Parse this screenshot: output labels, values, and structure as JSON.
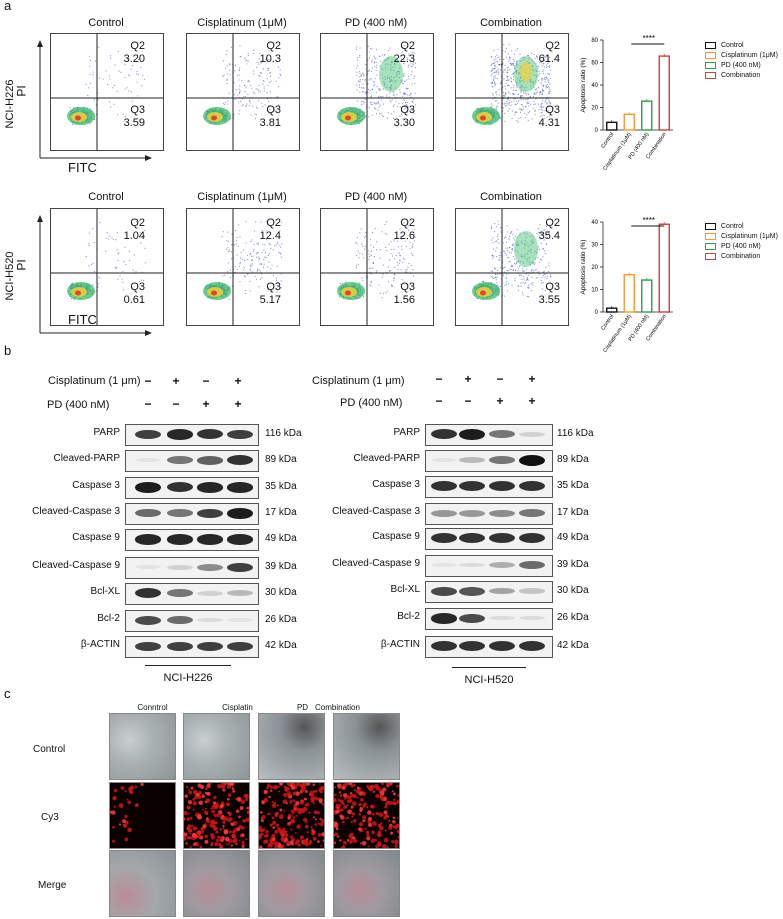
{
  "panel_a": {
    "label": "a",
    "axis_x": "FITC",
    "axis_y": "PI",
    "headers": [
      "Control",
      "Cisplatinum (1μM)",
      "PD (400 nM)",
      "Combination"
    ],
    "rows": [
      {
        "cell": "NCI-H226",
        "plots": [
          {
            "q2_label": "Q2",
            "q2": "3.20",
            "q3_label": "Q3",
            "q3": "3.59"
          },
          {
            "q2_label": "Q2",
            "q2": "10.3",
            "q3_label": "Q3",
            "q3": "3.81"
          },
          {
            "q2_label": "Q2",
            "q2": "22.3",
            "q3_label": "Q3",
            "q3": "3.30"
          },
          {
            "q2_label": "Q2",
            "q2": "61.4",
            "q3_label": "Q3",
            "q3": "4.31"
          }
        ]
      },
      {
        "cell": "NCI-H520",
        "plots": [
          {
            "q2_label": "Q2",
            "q2": "1.04",
            "q3_label": "Q3",
            "q3": "0.61"
          },
          {
            "q2_label": "Q2",
            "q2": "12.4",
            "q3_label": "Q3",
            "q3": "5.17"
          },
          {
            "q2_label": "Q2",
            "q2": "12.6",
            "q3_label": "Q3",
            "q3": "1.56"
          },
          {
            "q2_label": "Q2",
            "q2": "35.4",
            "q3_label": "Q3",
            "q3": "3.55"
          }
        ]
      }
    ],
    "significance": "****",
    "legend": [
      "Control",
      "Cisplatinum (1μM)",
      "PD (400 nM)",
      "Combination"
    ],
    "colors": [
      "#111111",
      "#f39a2c",
      "#2e9e4a",
      "#c8413a"
    ]
  },
  "chart_data": [
    {
      "type": "bar",
      "categories": [
        "Control",
        "Cisplatinum (1μM)",
        "PD (400 nM)",
        "Combination"
      ],
      "values": [
        6.8,
        13.9,
        25.6,
        65.7
      ],
      "ylabel": "Apoptosis ratio (%)",
      "ylim": [
        0,
        80
      ],
      "yticks": [
        "0",
        "20",
        "40",
        "60",
        "80"
      ],
      "legend_position": "right"
    },
    {
      "type": "bar",
      "categories": [
        "Control",
        "Cisplatinum (1μM)",
        "PD (400 nM)",
        "Combination"
      ],
      "values": [
        1.7,
        16.6,
        14.2,
        39.0
      ],
      "ylabel": "Apoptosis ratio (%)",
      "ylim": [
        0,
        40
      ],
      "yticks": [
        "0",
        "10",
        "20",
        "30",
        "40"
      ],
      "legend_position": "right"
    }
  ],
  "panel_b": {
    "label": "b",
    "treatment_cis": "Cisplatinum (1 μm)",
    "treatment_pd": "PD (400 nM)",
    "cis_signs": [
      "−",
      "+",
      "−",
      "+"
    ],
    "pd_signs": [
      "−",
      "−",
      "+",
      "+"
    ],
    "proteins": [
      "PARP",
      "Cleaved-PARP",
      "Caspase 3",
      "Cleaved-Caspase 3",
      "Caspase 9",
      "Cleaved-Caspase 9",
      "Bcl-XL",
      "Bcl-2",
      "β-ACTIN"
    ],
    "sizes": [
      "116 kDa",
      "89 kDa",
      "35 kDa",
      "17 kDa",
      "49 kDa",
      "39 kDa",
      "30 kDa",
      "26 kDa",
      "42 kDa"
    ],
    "left_cell": "NCI-H226",
    "right_cell": "NCI-H520",
    "left_intensity": [
      [
        0.8,
        0.9,
        0.85,
        0.8
      ],
      [
        0.05,
        0.55,
        0.65,
        0.85
      ],
      [
        0.95,
        0.85,
        0.9,
        0.9
      ],
      [
        0.6,
        0.55,
        0.8,
        0.95
      ],
      [
        0.9,
        0.9,
        0.9,
        0.9
      ],
      [
        0.05,
        0.15,
        0.45,
        0.8
      ],
      [
        0.85,
        0.55,
        0.15,
        0.25
      ],
      [
        0.75,
        0.6,
        0.1,
        0.05
      ],
      [
        0.8,
        0.8,
        0.8,
        0.8
      ]
    ],
    "right_intensity": [
      [
        0.85,
        0.95,
        0.55,
        0.15
      ],
      [
        0.05,
        0.25,
        0.55,
        1.0
      ],
      [
        0.85,
        0.85,
        0.85,
        0.85
      ],
      [
        0.4,
        0.4,
        0.45,
        0.55
      ],
      [
        0.85,
        0.85,
        0.85,
        0.85
      ],
      [
        0.05,
        0.1,
        0.3,
        0.6
      ],
      [
        0.75,
        0.7,
        0.35,
        0.2
      ],
      [
        0.9,
        0.75,
        0.1,
        0.1
      ],
      [
        0.85,
        0.85,
        0.85,
        0.85
      ]
    ]
  },
  "panel_c": {
    "label": "c",
    "headers": [
      "Conntrol",
      "Cisplatin",
      "PD",
      "Combination"
    ],
    "rows": [
      "Control",
      "Cy3",
      "Merge"
    ]
  }
}
